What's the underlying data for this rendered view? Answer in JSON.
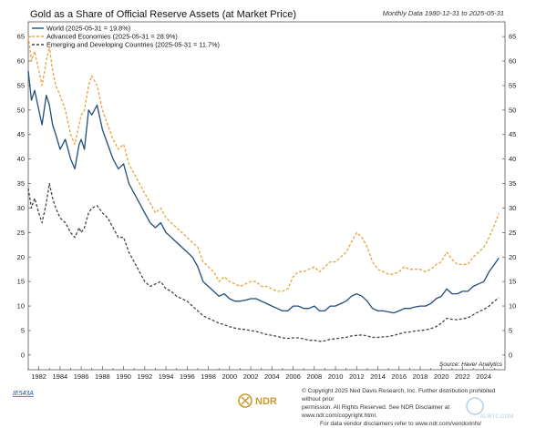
{
  "chart_data": {
    "type": "line",
    "title": "Gold as a Share of Official Reserve Assets (at Market Price)",
    "subtitle": "Monthly Data 1980-12-31 to 2025-05-31",
    "source": "Source:  Haver Analytics",
    "xlim": [
      1981,
      2026
    ],
    "ylim": [
      -3,
      68
    ],
    "yticks": [
      0,
      5,
      10,
      15,
      20,
      25,
      30,
      35,
      40,
      45,
      50,
      55,
      60,
      65
    ],
    "xticks": [
      1982,
      1984,
      1986,
      1988,
      1990,
      1992,
      1994,
      1996,
      1998,
      2000,
      2002,
      2004,
      2006,
      2008,
      2010,
      2012,
      2014,
      2016,
      2018,
      2020,
      2022,
      2024
    ],
    "grid": false,
    "legend_position": "top-left",
    "series": [
      {
        "name": "World (2025-05-31 = 19.8%)",
        "color": "#1f4e79",
        "style": "solid",
        "points": [
          [
            1981.0,
            58
          ],
          [
            1981.3,
            52
          ],
          [
            1981.6,
            54
          ],
          [
            1982.0,
            50
          ],
          [
            1982.3,
            47
          ],
          [
            1982.7,
            53
          ],
          [
            1983.0,
            51
          ],
          [
            1983.3,
            47
          ],
          [
            1983.6,
            45
          ],
          [
            1984.0,
            42
          ],
          [
            1984.5,
            44
          ],
          [
            1985.0,
            40
          ],
          [
            1985.4,
            38
          ],
          [
            1985.8,
            43
          ],
          [
            1986.0,
            44
          ],
          [
            1986.3,
            42
          ],
          [
            1986.7,
            50
          ],
          [
            1987.0,
            49
          ],
          [
            1987.5,
            51
          ],
          [
            1988.0,
            46
          ],
          [
            1988.5,
            43
          ],
          [
            1989.0,
            40
          ],
          [
            1989.5,
            38
          ],
          [
            1990.0,
            39
          ],
          [
            1990.5,
            35
          ],
          [
            1991.0,
            33
          ],
          [
            1991.5,
            31
          ],
          [
            1992.0,
            29
          ],
          [
            1992.5,
            27
          ],
          [
            1993.0,
            26
          ],
          [
            1993.5,
            27
          ],
          [
            1994.0,
            25
          ],
          [
            1994.5,
            24
          ],
          [
            1995.0,
            23
          ],
          [
            1995.5,
            22
          ],
          [
            1996.0,
            21
          ],
          [
            1996.5,
            20
          ],
          [
            1997.0,
            18
          ],
          [
            1997.5,
            15
          ],
          [
            1998.0,
            14
          ],
          [
            1998.5,
            13
          ],
          [
            1999.0,
            12
          ],
          [
            1999.5,
            12.5
          ],
          [
            2000.0,
            11.5
          ],
          [
            2000.5,
            11
          ],
          [
            2001.0,
            11
          ],
          [
            2001.5,
            11.2
          ],
          [
            2002.0,
            11.5
          ],
          [
            2002.5,
            11.5
          ],
          [
            2003.0,
            11
          ],
          [
            2003.5,
            10.5
          ],
          [
            2004.0,
            10
          ],
          [
            2004.5,
            9.5
          ],
          [
            2005.0,
            9
          ],
          [
            2005.5,
            9
          ],
          [
            2006.0,
            10
          ],
          [
            2006.5,
            10
          ],
          [
            2007.0,
            9.5
          ],
          [
            2007.5,
            9.5
          ],
          [
            2008.0,
            10
          ],
          [
            2008.5,
            9
          ],
          [
            2009.0,
            9
          ],
          [
            2009.5,
            10
          ],
          [
            2010.0,
            10
          ],
          [
            2010.5,
            10.5
          ],
          [
            2011.0,
            11
          ],
          [
            2011.5,
            12
          ],
          [
            2012.0,
            12.5
          ],
          [
            2012.5,
            12
          ],
          [
            2013.0,
            11
          ],
          [
            2013.5,
            9.5
          ],
          [
            2014.0,
            9
          ],
          [
            2014.5,
            9
          ],
          [
            2015.0,
            8.8
          ],
          [
            2015.5,
            8.6
          ],
          [
            2016.0,
            9
          ],
          [
            2016.5,
            9.5
          ],
          [
            2017.0,
            9.5
          ],
          [
            2017.5,
            9.8
          ],
          [
            2018.0,
            10
          ],
          [
            2018.5,
            10
          ],
          [
            2019.0,
            10.5
          ],
          [
            2019.5,
            11.5
          ],
          [
            2020.0,
            12
          ],
          [
            2020.5,
            13.5
          ],
          [
            2021.0,
            12.5
          ],
          [
            2021.5,
            12.5
          ],
          [
            2022.0,
            13
          ],
          [
            2022.5,
            13
          ],
          [
            2023.0,
            14
          ],
          [
            2023.5,
            14.5
          ],
          [
            2024.0,
            15
          ],
          [
            2024.5,
            17
          ],
          [
            2025.0,
            18.5
          ],
          [
            2025.42,
            19.8
          ]
        ]
      },
      {
        "name": "Advanced Economies (2025-05-31 = 28.9%)",
        "color": "#e8a33d",
        "style": "dashed",
        "points": [
          [
            1981.0,
            65
          ],
          [
            1981.3,
            60
          ],
          [
            1981.6,
            62
          ],
          [
            1982.0,
            58
          ],
          [
            1982.3,
            55
          ],
          [
            1982.7,
            60
          ],
          [
            1983.0,
            63
          ],
          [
            1983.3,
            58
          ],
          [
            1983.6,
            55
          ],
          [
            1984.0,
            53
          ],
          [
            1984.5,
            50
          ],
          [
            1985.0,
            45
          ],
          [
            1985.4,
            43
          ],
          [
            1985.8,
            47
          ],
          [
            1986.0,
            49
          ],
          [
            1986.3,
            50
          ],
          [
            1986.7,
            55
          ],
          [
            1987.0,
            57
          ],
          [
            1987.5,
            55
          ],
          [
            1988.0,
            50
          ],
          [
            1988.5,
            47
          ],
          [
            1989.0,
            44
          ],
          [
            1989.5,
            42
          ],
          [
            1990.0,
            43
          ],
          [
            1990.5,
            39
          ],
          [
            1991.0,
            37
          ],
          [
            1991.5,
            35
          ],
          [
            1992.0,
            33
          ],
          [
            1992.5,
            31
          ],
          [
            1993.0,
            29
          ],
          [
            1993.5,
            30
          ],
          [
            1994.0,
            28
          ],
          [
            1994.5,
            27
          ],
          [
            1995.0,
            26
          ],
          [
            1995.5,
            25
          ],
          [
            1996.0,
            24
          ],
          [
            1996.5,
            23
          ],
          [
            1997.0,
            22
          ],
          [
            1997.5,
            19
          ],
          [
            1998.0,
            18
          ],
          [
            1998.5,
            17
          ],
          [
            1999.0,
            15
          ],
          [
            1999.5,
            16
          ],
          [
            2000.0,
            15
          ],
          [
            2000.5,
            14.5
          ],
          [
            2001.0,
            14
          ],
          [
            2001.5,
            14.5
          ],
          [
            2002.0,
            15
          ],
          [
            2002.5,
            15
          ],
          [
            2003.0,
            14
          ],
          [
            2003.5,
            14
          ],
          [
            2004.0,
            13.5
          ],
          [
            2004.5,
            13
          ],
          [
            2005.0,
            13
          ],
          [
            2005.5,
            13.5
          ],
          [
            2006.0,
            16
          ],
          [
            2006.5,
            17
          ],
          [
            2007.0,
            17
          ],
          [
            2007.5,
            17.5
          ],
          [
            2008.0,
            18
          ],
          [
            2008.5,
            17
          ],
          [
            2009.0,
            18
          ],
          [
            2009.5,
            19
          ],
          [
            2010.0,
            19
          ],
          [
            2010.5,
            20
          ],
          [
            2011.0,
            21
          ],
          [
            2011.5,
            23
          ],
          [
            2012.0,
            25
          ],
          [
            2012.5,
            24
          ],
          [
            2013.0,
            22
          ],
          [
            2013.5,
            19
          ],
          [
            2014.0,
            17.5
          ],
          [
            2014.5,
            17
          ],
          [
            2015.0,
            16.5
          ],
          [
            2015.5,
            16.5
          ],
          [
            2016.0,
            17
          ],
          [
            2016.5,
            18
          ],
          [
            2017.0,
            17.5
          ],
          [
            2017.5,
            17.5
          ],
          [
            2018.0,
            17.5
          ],
          [
            2018.5,
            17
          ],
          [
            2019.0,
            17.5
          ],
          [
            2019.5,
            18.5
          ],
          [
            2020.0,
            19
          ],
          [
            2020.5,
            21
          ],
          [
            2021.0,
            19.5
          ],
          [
            2021.5,
            18.5
          ],
          [
            2022.0,
            18.5
          ],
          [
            2022.5,
            18.5
          ],
          [
            2023.0,
            20
          ],
          [
            2023.5,
            21
          ],
          [
            2024.0,
            22
          ],
          [
            2024.5,
            24
          ],
          [
            2025.0,
            26.5
          ],
          [
            2025.42,
            28.9
          ]
        ]
      },
      {
        "name": "Emerging and Developing Countries (2025-05-31 = 11.7%)",
        "color": "#444444",
        "style": "dashed",
        "points": [
          [
            1981.0,
            34
          ],
          [
            1981.3,
            30
          ],
          [
            1981.6,
            32
          ],
          [
            1982.0,
            29
          ],
          [
            1982.3,
            27
          ],
          [
            1982.7,
            31
          ],
          [
            1983.0,
            35
          ],
          [
            1983.3,
            32
          ],
          [
            1983.6,
            30
          ],
          [
            1984.0,
            28
          ],
          [
            1984.5,
            27
          ],
          [
            1985.0,
            25
          ],
          [
            1985.4,
            24
          ],
          [
            1985.8,
            26
          ],
          [
            1986.0,
            25
          ],
          [
            1986.3,
            26
          ],
          [
            1986.7,
            29
          ],
          [
            1987.0,
            30
          ],
          [
            1987.5,
            30.5
          ],
          [
            1988.0,
            29
          ],
          [
            1988.5,
            28
          ],
          [
            1989.0,
            26
          ],
          [
            1989.5,
            24
          ],
          [
            1990.0,
            24
          ],
          [
            1990.5,
            21
          ],
          [
            1991.0,
            19
          ],
          [
            1991.5,
            17
          ],
          [
            1992.0,
            15
          ],
          [
            1992.5,
            14
          ],
          [
            1993.0,
            14.5
          ],
          [
            1993.5,
            15
          ],
          [
            1994.0,
            13.5
          ],
          [
            1994.5,
            13
          ],
          [
            1995.0,
            12
          ],
          [
            1995.5,
            11.5
          ],
          [
            1996.0,
            11
          ],
          [
            1996.5,
            10
          ],
          [
            1997.0,
            9
          ],
          [
            1997.5,
            8
          ],
          [
            1998.0,
            7.5
          ],
          [
            1998.5,
            7
          ],
          [
            1999.0,
            6.5
          ],
          [
            1999.5,
            6.2
          ],
          [
            2000.0,
            5.8
          ],
          [
            2000.5,
            5.5
          ],
          [
            2001.0,
            5.3
          ],
          [
            2001.5,
            5.2
          ],
          [
            2002.0,
            5
          ],
          [
            2002.5,
            4.8
          ],
          [
            2003.0,
            4.5
          ],
          [
            2003.5,
            4.2
          ],
          [
            2004.0,
            4
          ],
          [
            2004.5,
            3.8
          ],
          [
            2005.0,
            3.5
          ],
          [
            2005.5,
            3.4
          ],
          [
            2006.0,
            3.5
          ],
          [
            2006.5,
            3.5
          ],
          [
            2007.0,
            3.3
          ],
          [
            2007.5,
            3.0
          ],
          [
            2008.0,
            3.0
          ],
          [
            2008.5,
            2.8
          ],
          [
            2009.0,
            2.9
          ],
          [
            2009.5,
            3.2
          ],
          [
            2010.0,
            3.3
          ],
          [
            2010.5,
            3.5
          ],
          [
            2011.0,
            3.6
          ],
          [
            2011.5,
            3.9
          ],
          [
            2012.0,
            4.0
          ],
          [
            2012.5,
            4.1
          ],
          [
            2013.0,
            3.9
          ],
          [
            2013.5,
            3.6
          ],
          [
            2014.0,
            3.6
          ],
          [
            2014.5,
            3.7
          ],
          [
            2015.0,
            3.8
          ],
          [
            2015.5,
            4.0
          ],
          [
            2016.0,
            4.3
          ],
          [
            2016.5,
            4.6
          ],
          [
            2017.0,
            4.7
          ],
          [
            2017.5,
            4.9
          ],
          [
            2018.0,
            5.0
          ],
          [
            2018.5,
            5.1
          ],
          [
            2019.0,
            5.4
          ],
          [
            2019.5,
            5.8
          ],
          [
            2020.0,
            6.5
          ],
          [
            2020.5,
            7.5
          ],
          [
            2021.0,
            7.3
          ],
          [
            2021.5,
            7.2
          ],
          [
            2022.0,
            7.4
          ],
          [
            2022.5,
            7.6
          ],
          [
            2023.0,
            8.2
          ],
          [
            2023.5,
            8.8
          ],
          [
            2024.0,
            9.3
          ],
          [
            2024.5,
            10
          ],
          [
            2025.0,
            11
          ],
          [
            2025.42,
            11.7
          ]
        ]
      }
    ]
  },
  "footer": {
    "chart_code": "IE543A",
    "logo_text": "NDR",
    "copyright_line1": "© Copyright 2025 Ned Davis Research, Inc. Further distribution prohibited without prior",
    "copyright_line2": "permission. All Rights Reserved. See NDR Disclaimer at www.ndr.com/copyright.html.",
    "copyright_line3": "For data vendor disclaimers refer to www.ndr.com/vendorinfo/",
    "watermark": "ALIBTC.COM"
  }
}
